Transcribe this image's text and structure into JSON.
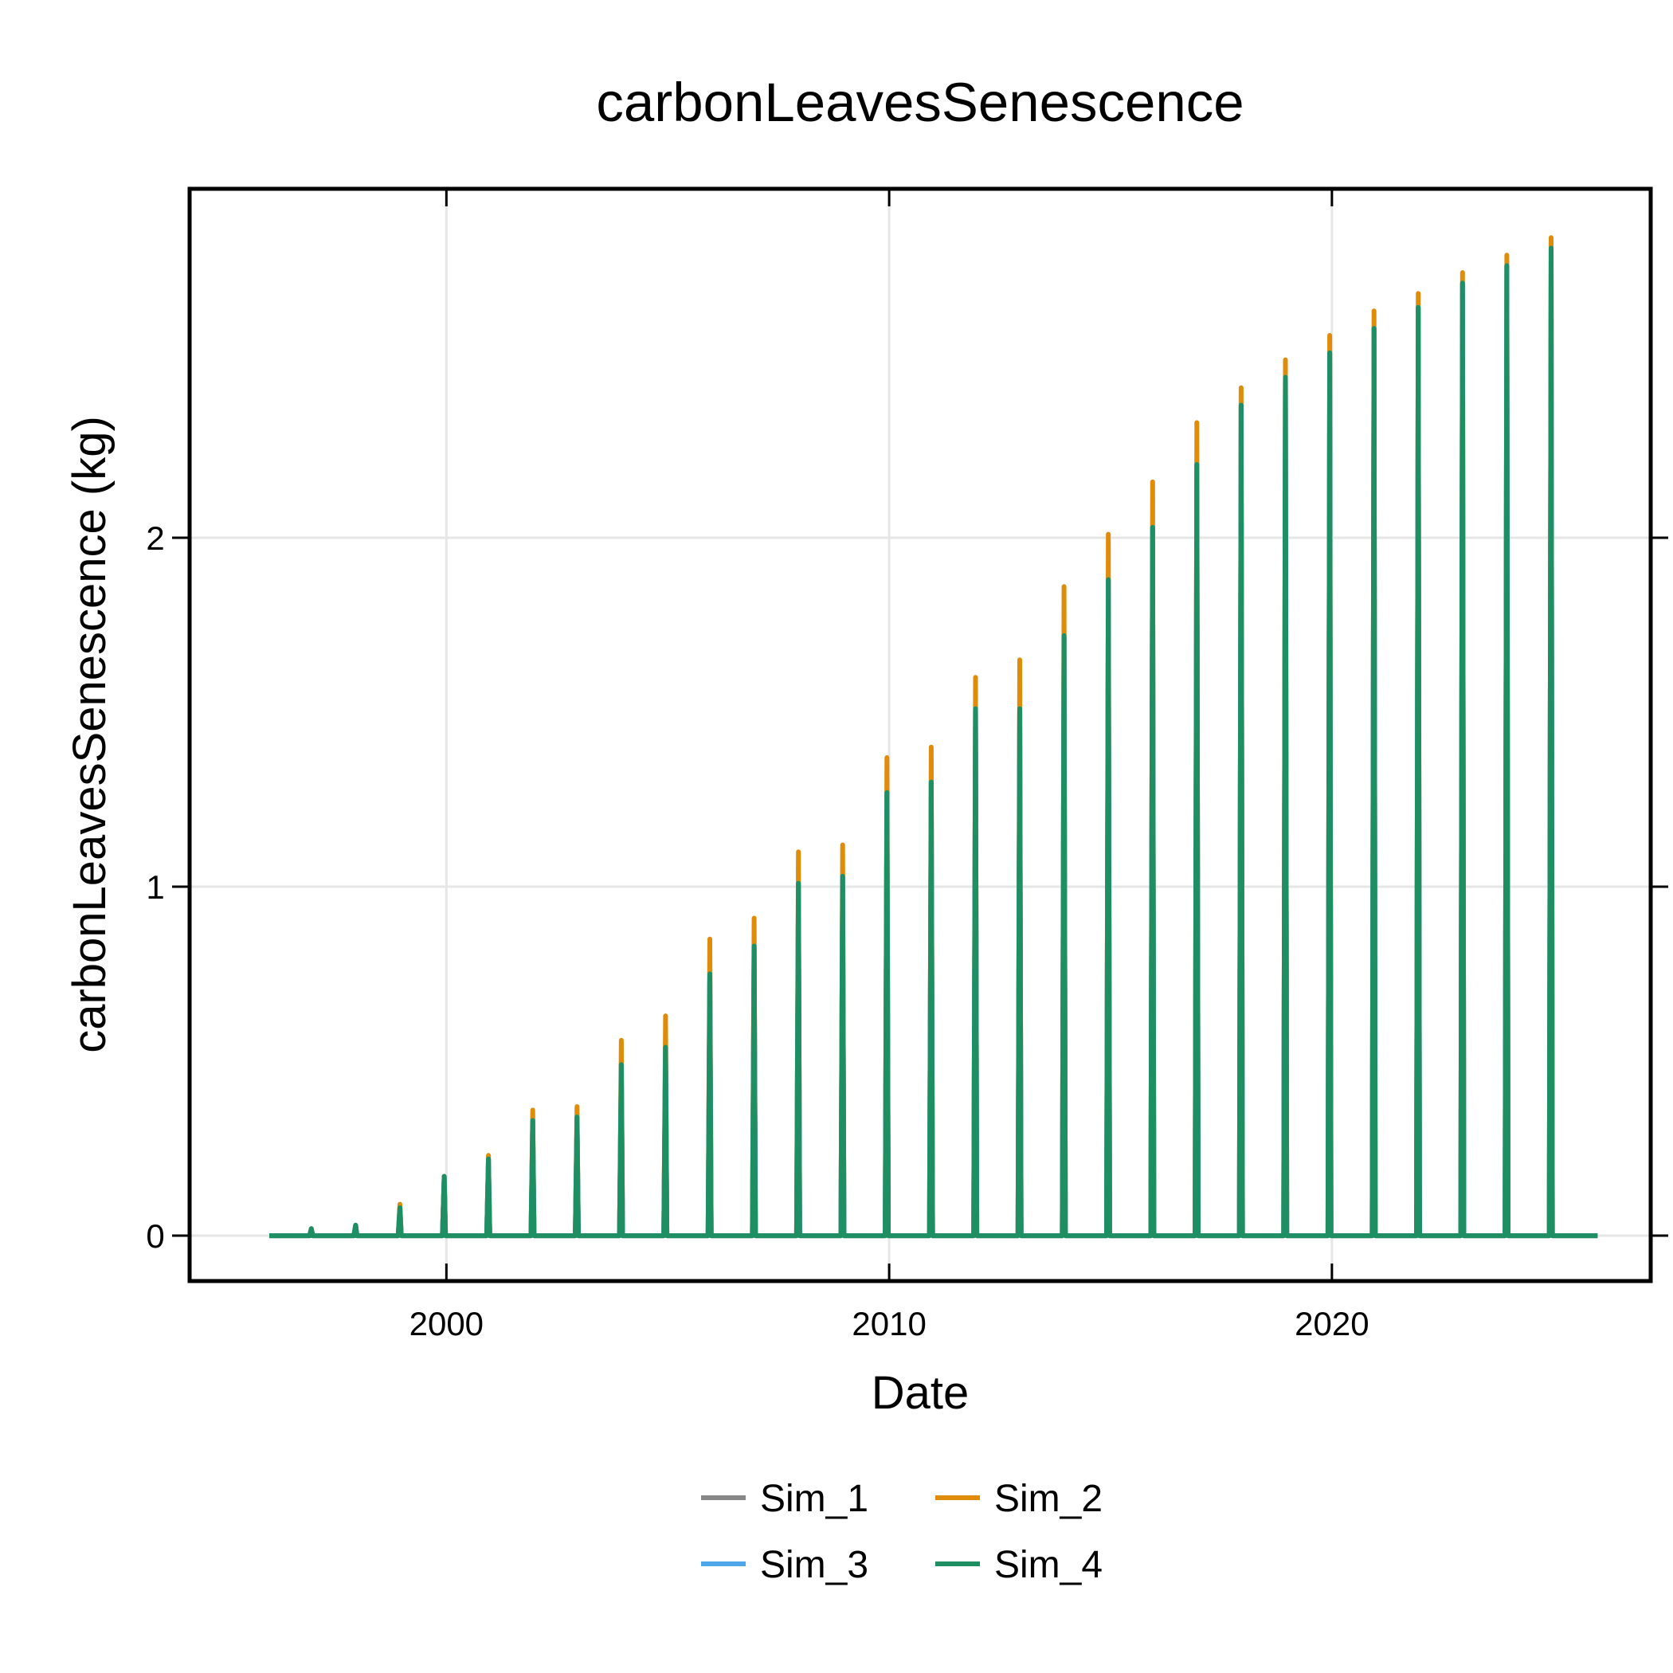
{
  "chart_data": {
    "type": "line",
    "title": "carbonLeavesSenescence",
    "xlabel": "Date",
    "ylabel": "carbonLeavesSenescence (kg)",
    "xlim": [
      1994.2,
      2027.2
    ],
    "ylim": [
      -0.13,
      3.0
    ],
    "xticks": [
      2000,
      2010,
      2020
    ],
    "xtick_labels": [
      "2000",
      "2010",
      "2020"
    ],
    "yticks": [
      0,
      1,
      2
    ],
    "ytick_labels": [
      "0",
      "1",
      "2"
    ],
    "x_start": 1996.0,
    "x_end": 2026.0,
    "grid": true,
    "legend_position": "bottom-center",
    "peak_years": [
      1997,
      1998,
      1999,
      2000,
      2001,
      2002,
      2003,
      2004,
      2005,
      2006,
      2007,
      2008,
      2009,
      2010,
      2011,
      2012,
      2013,
      2014,
      2015,
      2016,
      2017,
      2018,
      2019,
      2020,
      2021,
      2022,
      2023,
      2024,
      2025
    ],
    "series": [
      {
        "name": "Sim_1",
        "color": "#888888",
        "peaks": [
          0.02,
          0.03,
          0.08,
          0.17,
          0.22,
          0.33,
          0.34,
          0.49,
          0.54,
          0.75,
          0.83,
          1.01,
          1.03,
          1.27,
          1.3,
          1.51,
          1.51,
          1.72,
          1.88,
          2.03,
          2.21,
          2.38,
          2.46,
          2.53,
          2.6,
          2.66,
          2.73,
          2.78,
          2.83
        ]
      },
      {
        "name": "Sim_2",
        "color": "#e08c0b",
        "peaks": [
          0.02,
          0.03,
          0.09,
          0.17,
          0.23,
          0.36,
          0.37,
          0.56,
          0.63,
          0.85,
          0.91,
          1.1,
          1.12,
          1.37,
          1.4,
          1.6,
          1.65,
          1.86,
          2.01,
          2.16,
          2.33,
          2.43,
          2.51,
          2.58,
          2.65,
          2.7,
          2.76,
          2.81,
          2.86
        ]
      },
      {
        "name": "Sim_3",
        "color": "#4ea7e8",
        "peaks": [
          0.02,
          0.03,
          0.08,
          0.17,
          0.22,
          0.33,
          0.34,
          0.49,
          0.54,
          0.75,
          0.83,
          1.01,
          1.03,
          1.27,
          1.3,
          1.51,
          1.51,
          1.72,
          1.88,
          2.03,
          2.21,
          2.38,
          2.46,
          2.53,
          2.6,
          2.66,
          2.73,
          2.78,
          2.83
        ]
      },
      {
        "name": "Sim_4",
        "color": "#1d8f63",
        "peaks": [
          0.02,
          0.03,
          0.08,
          0.17,
          0.22,
          0.33,
          0.34,
          0.49,
          0.54,
          0.75,
          0.83,
          1.01,
          1.03,
          1.27,
          1.3,
          1.51,
          1.51,
          1.72,
          1.88,
          2.03,
          2.21,
          2.38,
          2.46,
          2.53,
          2.6,
          2.66,
          2.73,
          2.78,
          2.83
        ]
      }
    ]
  }
}
